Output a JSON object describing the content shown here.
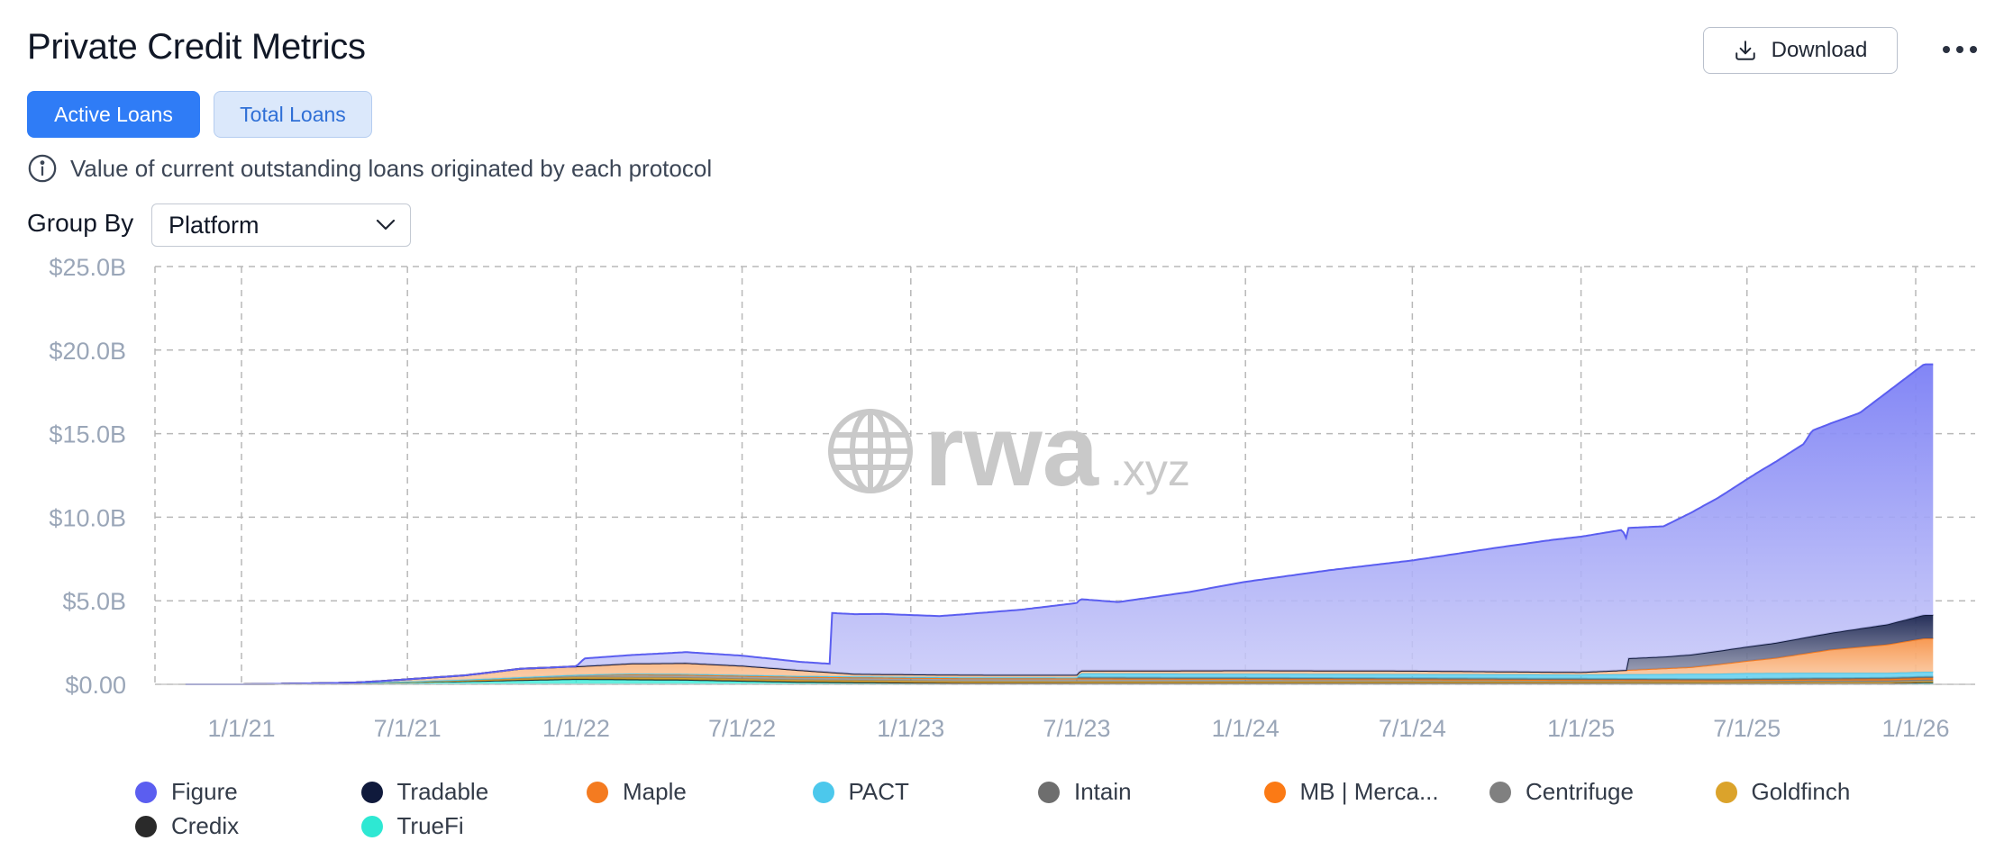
{
  "header": {
    "title": "Private Credit Metrics",
    "download_label": "Download"
  },
  "tabs": [
    {
      "label": "Active Loans",
      "active": true
    },
    {
      "label": "Total Loans",
      "active": false
    }
  ],
  "info_text": "Value of current outstanding loans originated by each protocol",
  "group_by": {
    "label": "Group By",
    "value": "Platform"
  },
  "watermark": {
    "main": "rwa",
    "suffix": ".xyz"
  },
  "chart_data": {
    "type": "area",
    "stacked": true,
    "title": "Private Credit Metrics",
    "xlabel": "",
    "ylabel": "",
    "x_range": [
      "2020-11-01",
      "2026-01-20"
    ],
    "ylim": [
      0,
      25
    ],
    "yunit": "$B",
    "y_ticks": [
      0,
      5,
      10,
      15,
      20,
      25
    ],
    "y_tick_labels": [
      "$0.00",
      "$5.0B",
      "$10.0B",
      "$15.0B",
      "$20.0B",
      "$25.0B"
    ],
    "x_ticks": [
      "2021-01-01",
      "2021-07-01",
      "2022-01-01",
      "2022-07-01",
      "2023-01-01",
      "2023-07-01",
      "2024-01-01",
      "2024-07-01",
      "2025-01-01",
      "2025-07-01",
      "2026-01-01"
    ],
    "x_tick_labels": [
      "1/1/21",
      "7/1/21",
      "1/1/22",
      "7/1/22",
      "1/1/23",
      "7/1/23",
      "1/1/24",
      "7/1/24",
      "1/1/25",
      "7/1/25",
      "1/1/26"
    ],
    "grid": true,
    "legend_position": "bottom",
    "series": [
      {
        "name": "Figure",
        "color": "#5b5ef0",
        "points": [
          [
            "2022-01-01",
            0
          ],
          [
            "2022-01-10",
            0.45
          ],
          [
            "2022-03-01",
            0.5
          ],
          [
            "2022-05-01",
            0.65
          ],
          [
            "2022-07-01",
            0.6
          ],
          [
            "2022-09-01",
            0.5
          ],
          [
            "2022-10-05",
            0.5
          ],
          [
            "2022-10-07",
            3.55
          ],
          [
            "2022-12-01",
            3.6
          ],
          [
            "2023-02-01",
            3.5
          ],
          [
            "2023-05-01",
            3.9
          ],
          [
            "2023-07-01",
            4.3
          ],
          [
            "2023-08-15",
            4.1
          ],
          [
            "2023-11-01",
            4.7
          ],
          [
            "2024-01-01",
            5.3
          ],
          [
            "2024-04-01",
            6.0
          ],
          [
            "2024-07-01",
            6.6
          ],
          [
            "2024-10-01",
            7.4
          ],
          [
            "2024-12-01",
            7.9
          ],
          [
            "2025-02-15",
            8.4
          ],
          [
            "2025-02-20",
            7.8
          ],
          [
            "2025-04-01",
            7.8
          ],
          [
            "2025-06-01",
            9.2
          ],
          [
            "2025-07-15",
            10.4
          ],
          [
            "2025-09-01",
            11.6
          ],
          [
            "2025-09-10",
            12.3
          ],
          [
            "2025-11-01",
            12.9
          ],
          [
            "2025-12-01",
            13.9
          ],
          [
            "2026-01-10",
            15.0
          ]
        ]
      },
      {
        "name": "Tradable",
        "color": "#101a3c",
        "points": [
          [
            "2025-02-20",
            0
          ],
          [
            "2025-02-20",
            0.7
          ],
          [
            "2025-04-01",
            0.7
          ],
          [
            "2025-06-01",
            0.8
          ],
          [
            "2025-08-01",
            0.9
          ],
          [
            "2025-10-01",
            1.0
          ],
          [
            "2025-12-01",
            1.2
          ],
          [
            "2026-01-10",
            1.4
          ]
        ]
      },
      {
        "name": "Maple",
        "color": "#f47b20",
        "points": [
          [
            "2021-05-01",
            0
          ],
          [
            "2021-09-01",
            0.25
          ],
          [
            "2021-11-01",
            0.5
          ],
          [
            "2022-01-01",
            0.5
          ],
          [
            "2022-03-01",
            0.6
          ],
          [
            "2022-05-01",
            0.65
          ],
          [
            "2022-07-01",
            0.55
          ],
          [
            "2022-09-01",
            0.35
          ],
          [
            "2022-11-01",
            0.15
          ],
          [
            "2023-06-01",
            0.15
          ],
          [
            "2024-01-01",
            0.2
          ],
          [
            "2024-07-01",
            0.2
          ],
          [
            "2025-01-01",
            0.15
          ],
          [
            "2025-05-01",
            0.4
          ],
          [
            "2025-08-01",
            0.9
          ],
          [
            "2025-10-01",
            1.4
          ],
          [
            "2025-12-01",
            1.7
          ],
          [
            "2026-01-10",
            2.0
          ]
        ]
      },
      {
        "name": "PACT",
        "color": "#4cc8ec",
        "points": [
          [
            "2023-07-01",
            0
          ],
          [
            "2023-07-05",
            0.25
          ],
          [
            "2024-07-01",
            0.25
          ],
          [
            "2025-01-01",
            0.25
          ],
          [
            "2025-07-01",
            0.35
          ],
          [
            "2025-12-01",
            0.3
          ],
          [
            "2026-01-10",
            0.3
          ]
        ]
      },
      {
        "name": "Intain",
        "color": "#6e6e6e",
        "points": [
          [
            "2022-01-01",
            0
          ],
          [
            "2022-03-01",
            0.05
          ],
          [
            "2025-12-01",
            0.08
          ],
          [
            "2026-01-10",
            0.08
          ]
        ]
      },
      {
        "name": "MB | Merca...",
        "color": "#fb7a15",
        "points": [
          [
            "2025-06-01",
            0
          ],
          [
            "2025-09-01",
            0.05
          ],
          [
            "2026-01-10",
            0.1
          ]
        ]
      },
      {
        "name": "Centrifuge",
        "color": "#808080",
        "points": [
          [
            "2021-03-01",
            0
          ],
          [
            "2021-09-01",
            0.05
          ],
          [
            "2022-03-01",
            0.2
          ],
          [
            "2022-09-01",
            0.2
          ],
          [
            "2023-06-01",
            0.2
          ],
          [
            "2024-06-01",
            0.15
          ],
          [
            "2025-06-01",
            0.1
          ],
          [
            "2026-01-10",
            0.1
          ]
        ]
      },
      {
        "name": "Goldfinch",
        "color": "#dba32b",
        "points": [
          [
            "2021-06-01",
            0
          ],
          [
            "2022-01-01",
            0.1
          ],
          [
            "2022-08-01",
            0.1
          ],
          [
            "2023-06-01",
            0.08
          ],
          [
            "2024-06-01",
            0.08
          ],
          [
            "2026-01-10",
            0.05
          ]
        ]
      },
      {
        "name": "Credix",
        "color": "#2a2a2a",
        "points": [
          [
            "2021-10-01",
            0
          ],
          [
            "2022-01-01",
            0.02
          ],
          [
            "2022-10-01",
            0.03
          ],
          [
            "2023-10-01",
            0.02
          ],
          [
            "2026-01-10",
            0.02
          ]
        ]
      },
      {
        "name": "TrueFi",
        "color": "#2ee8d3",
        "points": [
          [
            "2021-01-01",
            0
          ],
          [
            "2021-06-01",
            0.1
          ],
          [
            "2021-11-01",
            0.25
          ],
          [
            "2022-01-01",
            0.3
          ],
          [
            "2022-05-01",
            0.25
          ],
          [
            "2022-09-01",
            0.12
          ],
          [
            "2023-03-01",
            0.05
          ],
          [
            "2024-01-01",
            0.05
          ],
          [
            "2025-12-01",
            0.05
          ],
          [
            "2026-01-10",
            0.1
          ]
        ]
      }
    ]
  }
}
